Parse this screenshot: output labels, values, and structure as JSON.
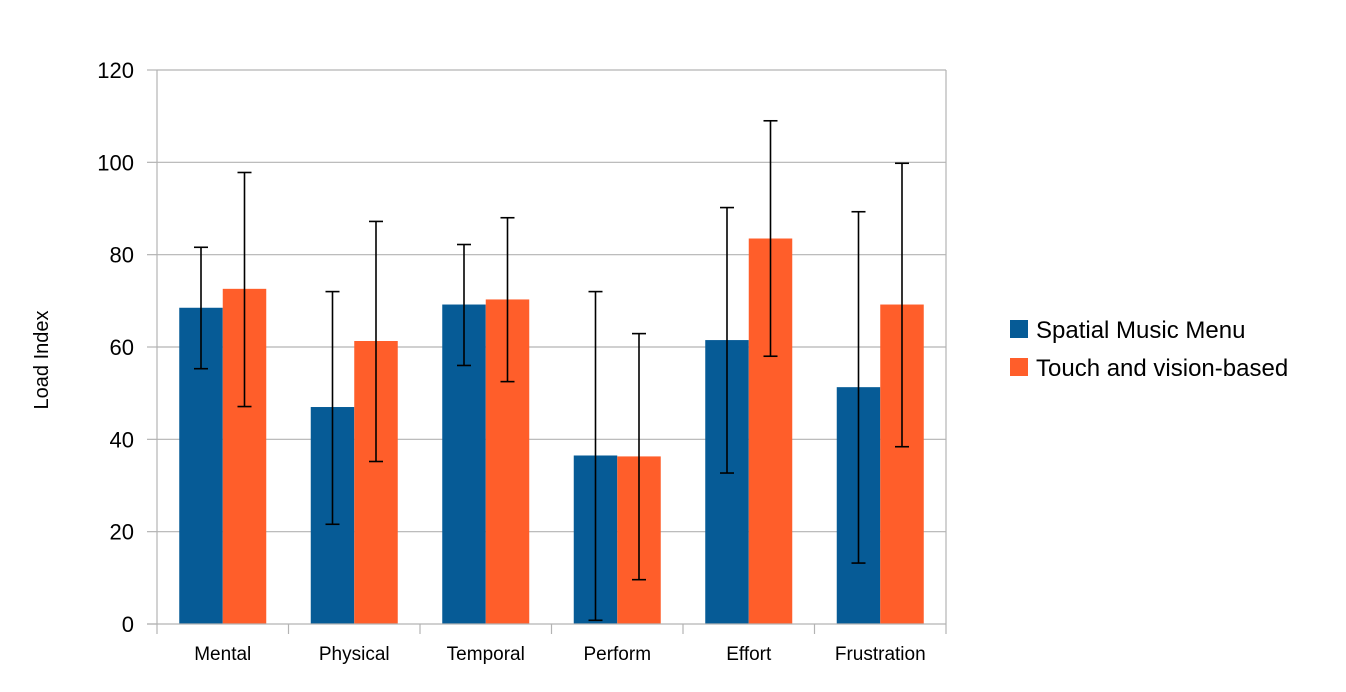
{
  "chart_data": {
    "type": "bar",
    "title": "",
    "xlabel": "",
    "ylabel": "Load Index",
    "ylim": [
      0,
      120
    ],
    "yticks": [
      0,
      20,
      40,
      60,
      80,
      100,
      120
    ],
    "grid": true,
    "legend_position": "right",
    "categories": [
      "Mental",
      "Physical",
      "Temporal",
      "Perform",
      "Effort",
      "Frustration"
    ],
    "series": [
      {
        "name": "Spatial Music Menu",
        "color": "#065b96",
        "values": [
          68.5,
          47,
          69.2,
          36.5,
          61.5,
          51.3
        ],
        "error_low": [
          55.3,
          21.6,
          56,
          0.8,
          32.7,
          13.2
        ],
        "error_high": [
          81.6,
          72,
          82.2,
          72,
          90.2,
          89.3
        ]
      },
      {
        "name": "Touch and vision-based",
        "color": "#ff5e2a",
        "values": [
          72.6,
          61.3,
          70.3,
          36.3,
          83.5,
          69.2
        ],
        "error_low": [
          47.1,
          35.2,
          52.5,
          9.6,
          58,
          38.4
        ],
        "error_high": [
          97.8,
          87.2,
          88,
          62.9,
          109,
          99.8
        ]
      }
    ]
  }
}
